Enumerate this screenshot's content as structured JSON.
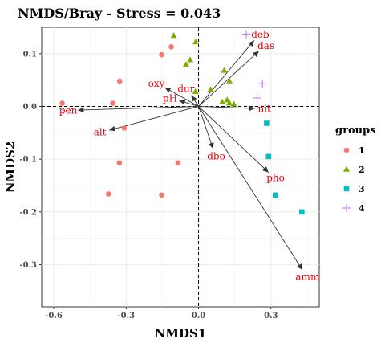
{
  "chart_data": {
    "type": "scatter",
    "title": "NMDS/Bray - Stress = 0.043",
    "xlabel": "NMDS1",
    "ylabel": "NMDS2",
    "xlim": [
      -0.65,
      0.5
    ],
    "ylim": [
      -0.38,
      0.15
    ],
    "x_ticks": [
      -0.6,
      -0.3,
      0.0,
      0.3
    ],
    "x_tick_labels": [
      "-0.6",
      "-0.3",
      "0.0",
      "0.3"
    ],
    "y_ticks": [
      -0.3,
      -0.2,
      -0.1,
      0.0,
      0.1
    ],
    "y_tick_labels": [
      "-0.3",
      "-0.2",
      "-0.1",
      "0.0",
      "0.1"
    ],
    "grid": true,
    "reference_lines": {
      "x": 0,
      "y": 0,
      "style": "dashed"
    },
    "legend": {
      "title": "groups",
      "placement": "right",
      "entries": [
        {
          "label": "1",
          "shape": "circle",
          "color": "#f8766d"
        },
        {
          "label": "2",
          "shape": "triangle",
          "color": "#7cae00"
        },
        {
          "label": "3",
          "shape": "square",
          "color": "#00bfc4"
        },
        {
          "label": "4",
          "shape": "plus",
          "color": "#c77cff"
        }
      ]
    },
    "series": [
      {
        "name": "1",
        "points": [
          {
            "x": -0.565,
            "y": 0.006
          },
          {
            "x": -0.327,
            "y": 0.048
          },
          {
            "x": -0.355,
            "y": 0.006
          },
          {
            "x": -0.113,
            "y": 0.113
          },
          {
            "x": -0.153,
            "y": 0.098
          },
          {
            "x": -0.308,
            "y": -0.041
          },
          {
            "x": -0.328,
            "y": -0.107
          },
          {
            "x": -0.373,
            "y": -0.166
          },
          {
            "x": -0.085,
            "y": -0.107
          },
          {
            "x": -0.153,
            "y": -0.168
          }
        ]
      },
      {
        "name": "2",
        "points": [
          {
            "x": -0.103,
            "y": 0.134
          },
          {
            "x": -0.012,
            "y": 0.122
          },
          {
            "x": -0.035,
            "y": 0.088
          },
          {
            "x": -0.052,
            "y": 0.079
          },
          {
            "x": 0.106,
            "y": 0.068
          },
          {
            "x": 0.128,
            "y": 0.048
          },
          {
            "x": -0.013,
            "y": 0.028
          },
          {
            "x": 0.05,
            "y": 0.032
          },
          {
            "x": 0.118,
            "y": 0.012
          },
          {
            "x": 0.128,
            "y": 0.006
          },
          {
            "x": 0.098,
            "y": 0.008
          },
          {
            "x": 0.146,
            "y": 0.004
          }
        ]
      },
      {
        "name": "3",
        "points": [
          {
            "x": 0.282,
            "y": -0.032
          },
          {
            "x": 0.29,
            "y": -0.095
          },
          {
            "x": 0.318,
            "y": -0.168
          },
          {
            "x": 0.428,
            "y": -0.2
          }
        ]
      },
      {
        "name": "4",
        "points": [
          {
            "x": 0.198,
            "y": 0.137
          },
          {
            "x": 0.265,
            "y": 0.043
          },
          {
            "x": 0.242,
            "y": 0.016
          }
        ]
      }
    ],
    "vectors": [
      {
        "label": "deb",
        "x": 0.23,
        "y": 0.125
      },
      {
        "label": "das",
        "x": 0.25,
        "y": 0.105
      },
      {
        "label": "nit",
        "x": 0.233,
        "y": -0.004
      },
      {
        "label": "pho",
        "x": 0.29,
        "y": -0.125
      },
      {
        "label": "amm",
        "x": 0.43,
        "y": -0.31
      },
      {
        "label": "dbo",
        "x": 0.06,
        "y": -0.08
      },
      {
        "label": "dur",
        "x": -0.03,
        "y": 0.021
      },
      {
        "label": "pH",
        "x": -0.08,
        "y": 0.011
      },
      {
        "label": "oxy",
        "x": -0.14,
        "y": 0.036
      },
      {
        "label": "alt",
        "x": -0.37,
        "y": -0.045
      },
      {
        "label": "pen",
        "x": -0.5,
        "y": -0.007
      }
    ]
  }
}
